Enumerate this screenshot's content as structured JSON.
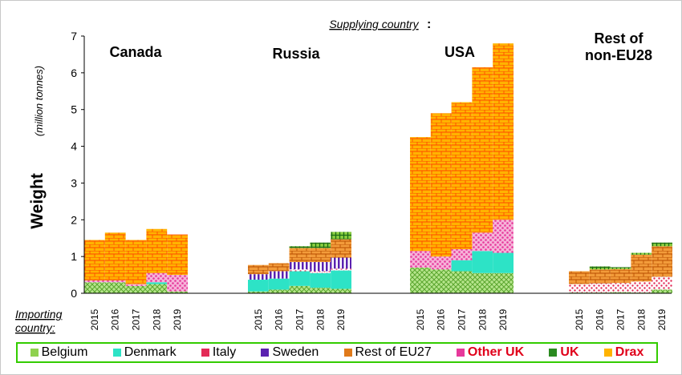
{
  "chart_data": {
    "type": "bar",
    "stacked": true,
    "header": {
      "label": "Supplying country",
      "suffix": ":"
    },
    "ylabel": "Weight",
    "ylabel_unit": "(million tonnes)",
    "ylim": [
      0,
      7
    ],
    "yticks": [
      "0",
      "1",
      "2",
      "3",
      "4",
      "5",
      "6",
      "7"
    ],
    "grid": false,
    "x_caption": [
      "Importing",
      "country:"
    ],
    "groups": [
      {
        "label": [
          "Canada"
        ],
        "years": [
          "2015",
          "2016",
          "2017",
          "2018",
          "2019"
        ]
      },
      {
        "label": [
          "Russia"
        ],
        "years": [
          "2015",
          "2016",
          "2017",
          "2018",
          "2019"
        ]
      },
      {
        "label": [
          "USA"
        ],
        "years": [
          "2015",
          "2016",
          "2017",
          "2018",
          "2019"
        ]
      },
      {
        "label": [
          "Rest of",
          "non-EU28"
        ],
        "years": [
          "2015",
          "2016",
          "2017",
          "2018",
          "2019"
        ]
      }
    ],
    "series": [
      {
        "name": "Belgium",
        "color": "#8fd14f",
        "pattern": "grid",
        "values": [
          [
            0.3,
            0.3,
            0.2,
            0.25,
            0.05
          ],
          [
            0.05,
            0.1,
            0.2,
            0.15,
            0.12
          ],
          [
            0.7,
            0.65,
            0.6,
            0.55,
            0.55
          ],
          [
            0.02,
            0.02,
            0.03,
            0.02,
            0.1
          ]
        ]
      },
      {
        "name": "Denmark",
        "color": "#2de3c6",
        "pattern": "solid",
        "values": [
          [
            0.0,
            0.0,
            0.0,
            0.05,
            0.0
          ],
          [
            0.32,
            0.3,
            0.4,
            0.4,
            0.5
          ],
          [
            0.0,
            0.0,
            0.3,
            0.6,
            0.55
          ],
          [
            0.0,
            0.0,
            0.0,
            0.0,
            0.0
          ]
        ]
      },
      {
        "name": "Italy",
        "color": "#e32b57",
        "pattern": "dots",
        "values": [
          [
            0.0,
            0.0,
            0.0,
            0.0,
            0.0
          ],
          [
            0.0,
            0.0,
            0.05,
            0.05,
            0.05
          ],
          [
            0.0,
            0.0,
            0.0,
            0.0,
            0.0
          ],
          [
            0.23,
            0.25,
            0.25,
            0.3,
            0.35
          ]
        ]
      },
      {
        "name": "Sweden",
        "color": "#5b22b0",
        "pattern": "vlines",
        "values": [
          [
            0.0,
            0.0,
            0.0,
            0.0,
            0.0
          ],
          [
            0.15,
            0.2,
            0.2,
            0.25,
            0.3
          ],
          [
            0.0,
            0.0,
            0.0,
            0.0,
            0.0
          ],
          [
            0.0,
            0.0,
            0.0,
            0.0,
            0.0
          ]
        ]
      },
      {
        "name": "Rest of EU27",
        "color": "#e07a1a",
        "pattern": "brick",
        "values": [
          [
            0.0,
            0.0,
            0.0,
            0.0,
            0.0
          ],
          [
            0.25,
            0.22,
            0.38,
            0.38,
            0.5
          ],
          [
            0.0,
            0.0,
            0.0,
            0.0,
            0.0
          ],
          [
            0.35,
            0.38,
            0.38,
            0.73,
            0.83
          ]
        ]
      },
      {
        "name": "Other UK",
        "color": "#e6399b",
        "pattern": "dots",
        "values": [
          [
            0.05,
            0.05,
            0.05,
            0.25,
            0.45
          ],
          [
            0.0,
            0.0,
            0.0,
            0.0,
            0.0
          ],
          [
            0.45,
            0.35,
            0.3,
            0.5,
            0.9
          ],
          [
            0.0,
            0.0,
            0.0,
            0.0,
            0.0
          ]
        ]
      },
      {
        "name": "UK",
        "color": "#2a8a20",
        "pattern": "cross",
        "values": [
          [
            0.0,
            0.0,
            0.0,
            0.0,
            0.0
          ],
          [
            0.0,
            0.0,
            0.05,
            0.15,
            0.2
          ],
          [
            0.0,
            0.0,
            0.0,
            0.0,
            0.0
          ],
          [
            0.0,
            0.08,
            0.05,
            0.05,
            0.1
          ]
        ]
      },
      {
        "name": "Drax",
        "color": "#ffb300",
        "pattern": "brick",
        "values": [
          [
            1.1,
            1.3,
            1.2,
            1.2,
            1.1
          ],
          [
            0.0,
            0.0,
            0.0,
            0.0,
            0.0
          ],
          [
            3.1,
            3.9,
            4.0,
            4.5,
            4.8
          ],
          [
            0.0,
            0.0,
            0.0,
            0.0,
            0.0
          ]
        ]
      }
    ]
  }
}
